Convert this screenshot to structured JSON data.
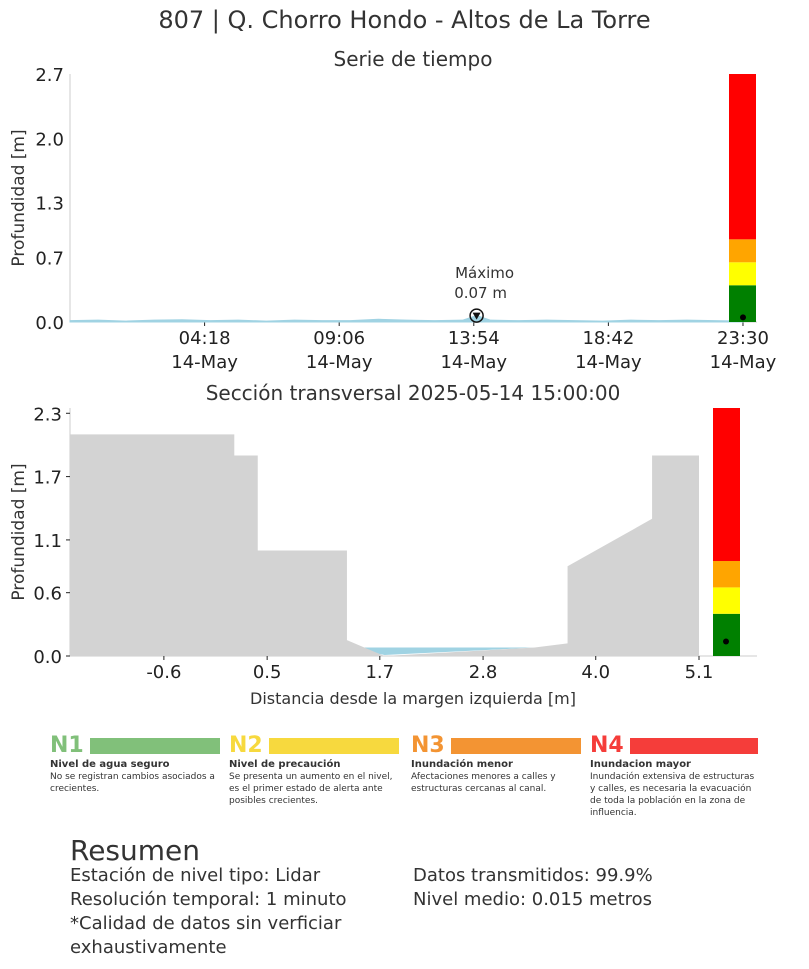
{
  "title": "807 | Q. Chorro Hondo - Altos de La Torre",
  "chart_data": [
    {
      "type": "area",
      "title": "Serie de tiempo",
      "ylabel": "Profundidad [m]",
      "xlabel": "",
      "ylim": [
        0,
        2.7
      ],
      "yticks": [
        "0.0",
        "0.7",
        "1.3",
        "2.0",
        "2.7"
      ],
      "xticks": [
        {
          "time": "04:18",
          "date": "14-May"
        },
        {
          "time": "09:06",
          "date": "14-May"
        },
        {
          "time": "13:54",
          "date": "14-May"
        },
        {
          "time": "18:42",
          "date": "14-May"
        },
        {
          "time": "23:30",
          "date": "14-May"
        }
      ],
      "xrange_hours": [
        23.5,
        48.0
      ],
      "series": [
        {
          "x_hours": [
            23.5,
            24.5,
            25.5,
            26.5,
            27.5,
            28.5,
            29.5,
            30.5,
            31.5,
            32.5,
            33.5,
            34.5,
            35.5,
            36.5,
            37.5,
            38.0,
            38.5,
            39.5,
            40.5,
            41.5,
            42.5,
            43.5,
            44.5,
            45.5,
            46.5,
            47.5
          ],
          "values": [
            0.015,
            0.02,
            0.01,
            0.02,
            0.025,
            0.015,
            0.02,
            0.01,
            0.02,
            0.015,
            0.015,
            0.03,
            0.02,
            0.015,
            0.02,
            0.07,
            0.02,
            0.015,
            0.02,
            0.015,
            0.01,
            0.02,
            0.015,
            0.02,
            0.015,
            0.01
          ]
        }
      ],
      "annotation": {
        "label": "Máximo",
        "value_text": "0.07 m",
        "x_hours": 38.0,
        "y": 0.07
      },
      "level_bar": [
        {
          "from": 0.0,
          "to": 0.4,
          "color": "#008000"
        },
        {
          "from": 0.4,
          "to": 0.65,
          "color": "#ffff00"
        },
        {
          "from": 0.65,
          "to": 0.9,
          "color": "#ffa500"
        },
        {
          "from": 0.9,
          "to": 2.7,
          "color": "#ff0000"
        }
      ],
      "current_level": 0.05
    },
    {
      "type": "area",
      "title": "Sección transversal 2025-05-14 15:00:00",
      "xlabel": "Distancia desde la margen izquierda [m]",
      "ylabel": "Profundidad [m]",
      "xlim": [
        -1.6,
        5.1
      ],
      "ylim": [
        0,
        2.35
      ],
      "xticks": [
        "-0.6",
        "0.5",
        "1.7",
        "2.8",
        "4.0",
        "5.1"
      ],
      "xtick_values": [
        -0.6,
        0.5,
        1.7,
        2.8,
        4.0,
        5.1
      ],
      "yticks": [
        "0.0",
        "0.6",
        "1.1",
        "1.7",
        "2.3"
      ],
      "ytick_values": [
        0.0,
        0.6,
        1.1,
        1.7,
        2.3
      ],
      "terrain": {
        "x": [
          -1.6,
          0.15,
          0.15,
          0.4,
          0.4,
          1.35,
          1.35,
          1.75,
          3.35,
          3.7,
          3.7,
          4.6,
          4.6,
          5.1,
          5.1,
          -1.6
        ],
        "y": [
          2.1,
          2.1,
          1.9,
          1.9,
          1.0,
          1.0,
          0.15,
          0.0,
          0.08,
          0.12,
          0.85,
          1.3,
          1.9,
          1.9,
          0.0,
          0.0
        ]
      },
      "water_level": 0.08,
      "water_color": "#a0d3e3",
      "level_bar": [
        {
          "from": 0.0,
          "to": 0.4,
          "color": "#008000"
        },
        {
          "from": 0.4,
          "to": 0.65,
          "color": "#ffff00"
        },
        {
          "from": 0.65,
          "to": 0.9,
          "color": "#ffa500"
        },
        {
          "from": 0.9,
          "to": 2.35,
          "color": "#ff0000"
        }
      ],
      "current_level": 0.08
    }
  ],
  "legend": [
    {
      "code": "N1",
      "color": "#81c07a",
      "text_color": "#81c07a",
      "name": "Nivel de agua seguro",
      "desc": "No se registran cambios asociados a crecientes."
    },
    {
      "code": "N2",
      "color": "#f7d93e",
      "text_color": "#f7d93e",
      "name": "Nivel de precaución",
      "desc": "Se presenta un aumento en el nivel, es el primer estado de alerta ante posibles crecientes."
    },
    {
      "code": "N3",
      "color": "#f39433",
      "text_color": "#f39433",
      "name": "Inundación menor",
      "desc": "Afectaciones menores a calles y estructuras cercanas al canal."
    },
    {
      "code": "N4",
      "color": "#f53d3a",
      "text_color": "#f53d3a",
      "name": "Inundacion mayor",
      "desc": "Inundación extensiva de estructuras y calles, es necesaria la evacuación de toda la población en la zona de influencia."
    }
  ],
  "summary": {
    "title": "Resumen",
    "left": [
      "Estación de nivel tipo: Lidar",
      "Resolución temporal: 1 minuto",
      "*Calidad de datos sin verficiar",
      "exhaustivamente"
    ],
    "right": [
      "Datos transmitidos: 99.9%",
      "Nivel medio: 0.015 metros"
    ]
  }
}
